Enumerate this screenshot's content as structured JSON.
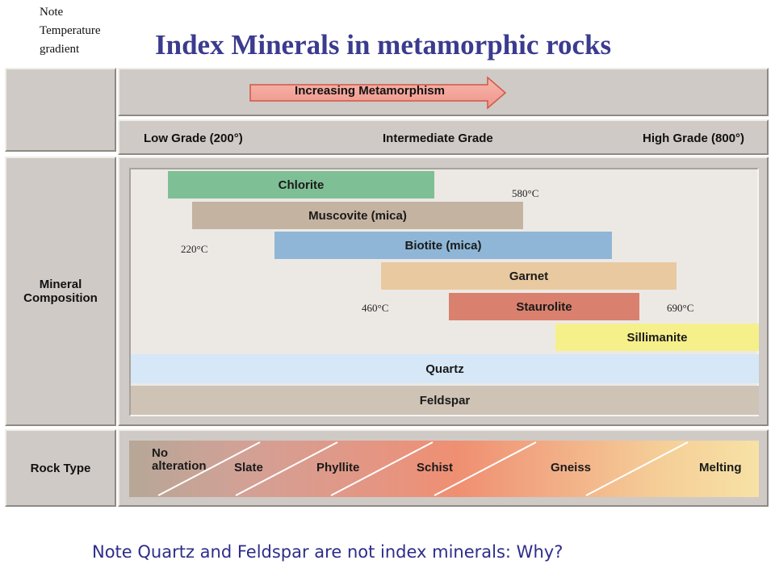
{
  "header": {
    "note_line1": "Note",
    "note_line2": "Temperature",
    "note_line3": "gradient",
    "title": "Index Minerals in metamorphic rocks"
  },
  "metamorphism": {
    "arrow_label": "Increasing Metamorphism",
    "grades": {
      "low": "Low Grade (200°)",
      "intermediate": "Intermediate Grade",
      "high": "High Grade (800°)"
    }
  },
  "mineral_composition": {
    "row_label_line1": "Mineral",
    "row_label_line2": "Composition",
    "minerals": [
      {
        "name": "Chlorite",
        "color": "#7fbf95"
      },
      {
        "name": "Muscovite (mica)",
        "color": "#c3b3a0"
      },
      {
        "name": "Biotite (mica)",
        "color": "#8fb6d6"
      },
      {
        "name": "Garnet",
        "color": "#e9c9a0"
      },
      {
        "name": "Staurolite",
        "color": "#d9806e"
      },
      {
        "name": "Sillimanite",
        "color": "#f6f08a"
      },
      {
        "name": "Quartz",
        "color": "#d6e8f7"
      },
      {
        "name": "Feldspar",
        "color": "#cec3b5"
      }
    ],
    "temperatures": {
      "t580": "580°C",
      "t220": "220°C",
      "t460": "460°C",
      "t690": "690°C"
    }
  },
  "rock_type": {
    "row_label": "Rock Type",
    "rocks": [
      {
        "line1": "No",
        "line2": "alteration"
      },
      {
        "line1": "Slate"
      },
      {
        "line1": "Phyllite"
      },
      {
        "line1": "Schist"
      },
      {
        "line1": "Gneiss"
      },
      {
        "line1": "Melting"
      }
    ]
  },
  "footer": {
    "note": "Note Quartz and Feldspar are not index minerals: Why?"
  }
}
